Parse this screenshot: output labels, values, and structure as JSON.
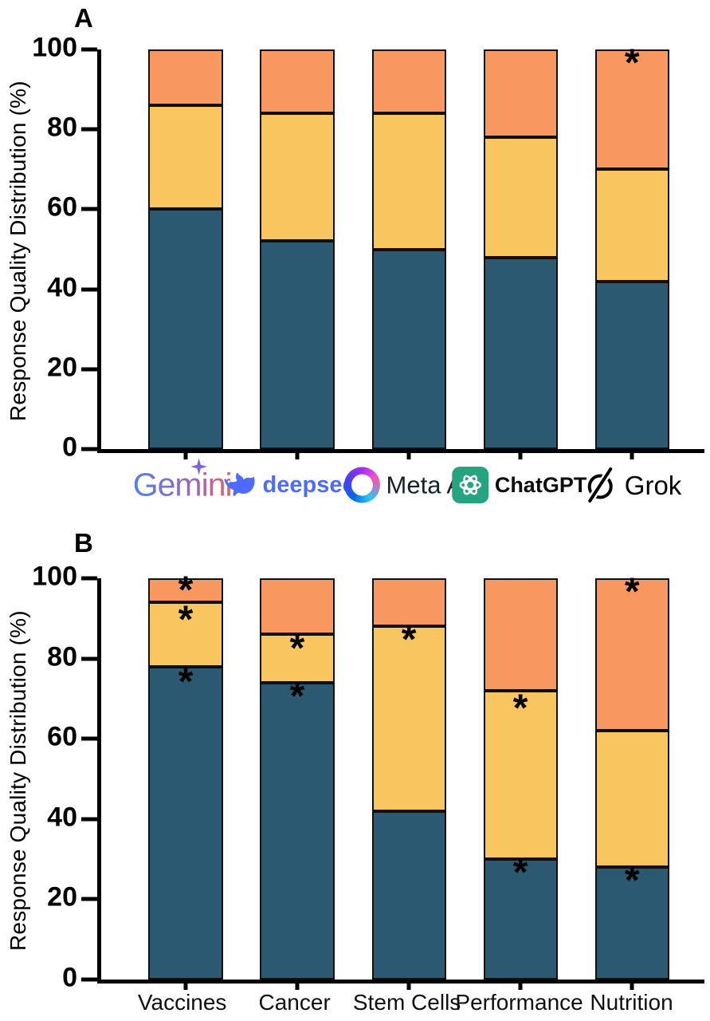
{
  "figure": {
    "significance_marker": "*"
  },
  "colors": {
    "segments": {
      "teal": "#2B5971",
      "yellow": "#F8C55E",
      "orange": "#F8975F"
    },
    "bar_border": "#101010",
    "axis": "#000000",
    "brand": {
      "gemini_gradient": [
        "#4E82EE",
        "#9168C0",
        "#D96570"
      ],
      "gemini_star": "#7C62E3",
      "deepseek": "#4D6BFE",
      "meta_text": "#16222B",
      "chatgpt_green": "#26A47F",
      "grok": "#000000"
    }
  },
  "icons": {
    "gemini": "sparkle-star",
    "deepseek": "whale",
    "meta_ai": "gradient-ring",
    "chatgpt": "openai-knot",
    "grok": "slashed-circle"
  },
  "chart_data": [
    {
      "panel_label": "A",
      "type": "bar",
      "subtype": "stacked",
      "ylabel": "Response Quality Distribution (%)",
      "ylim": [
        0,
        100
      ],
      "yticks": [
        0,
        20,
        40,
        60,
        80,
        100
      ],
      "grid": false,
      "legend": "none",
      "categories": [
        "Gemini",
        "deepseek",
        "Meta AI",
        "ChatGPT",
        "Grok"
      ],
      "series": [
        {
          "name": "teal",
          "values": [
            60,
            52,
            50,
            48,
            42
          ]
        },
        {
          "name": "yellow",
          "values": [
            26,
            32,
            34,
            30,
            28
          ]
        },
        {
          "name": "orange",
          "values": [
            14,
            16,
            16,
            22,
            30
          ]
        }
      ],
      "stack_boundaries_note": "teal tops: 60,52,50,48,42; yellow tops: 86,84,84,78,70; all bars total 100",
      "asterisks": [
        {
          "category": "Grok",
          "y": 96
        }
      ]
    },
    {
      "panel_label": "B",
      "type": "bar",
      "subtype": "stacked",
      "ylabel": "Response Quality Distribution (%)",
      "ylim": [
        0,
        100
      ],
      "yticks": [
        0,
        20,
        40,
        60,
        80,
        100
      ],
      "grid": false,
      "legend": "none",
      "categories": [
        "Vaccines",
        "Cancer",
        "Stem Cells",
        "Performance",
        "Nutrition"
      ],
      "series": [
        {
          "name": "teal",
          "values": [
            78,
            74,
            42,
            30,
            28
          ]
        },
        {
          "name": "yellow",
          "values": [
            16,
            12,
            46,
            42,
            34
          ]
        },
        {
          "name": "orange",
          "values": [
            6,
            14,
            12,
            28,
            38
          ]
        }
      ],
      "stack_boundaries_note": "teal tops: 78,74,42,30,28; yellow tops: 94,86,88,72,62; all bars total 100",
      "asterisks": [
        {
          "category": "Vaccines",
          "y": 73.5
        },
        {
          "category": "Vaccines",
          "y": 89
        },
        {
          "category": "Vaccines",
          "y": 96.5
        },
        {
          "category": "Cancer",
          "y": 70
        },
        {
          "category": "Cancer",
          "y": 82
        },
        {
          "category": "Stem Cells",
          "y": 84
        },
        {
          "category": "Performance",
          "y": 26
        },
        {
          "category": "Performance",
          "y": 67
        },
        {
          "category": "Nutrition",
          "y": 24
        },
        {
          "category": "Nutrition",
          "y": 96
        }
      ]
    }
  ]
}
